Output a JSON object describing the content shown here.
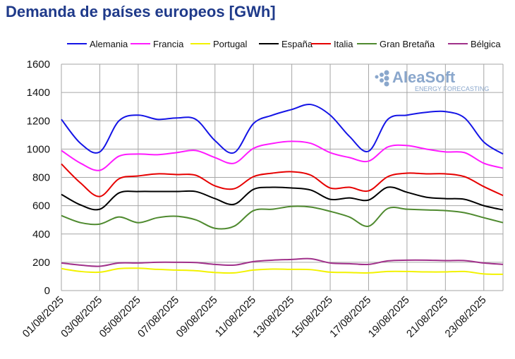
{
  "chart_data": {
    "type": "line",
    "title": "Demanda de países europeos [GWh]",
    "watermark": {
      "name": "AleaSoft",
      "tagline": "ENERGY FORECASTING",
      "color": "#8aa7cc"
    },
    "xlabel": "",
    "ylabel": "",
    "ylim": [
      0,
      1600
    ],
    "yticks": [
      0,
      200,
      400,
      600,
      800,
      1000,
      1200,
      1400,
      1600
    ],
    "grid": true,
    "legend_position": "top",
    "x": [
      "01/08/2025",
      "02/08/2025",
      "03/08/2025",
      "04/08/2025",
      "05/08/2025",
      "06/08/2025",
      "07/08/2025",
      "08/08/2025",
      "09/08/2025",
      "10/08/2025",
      "11/08/2025",
      "12/08/2025",
      "13/08/2025",
      "14/08/2025",
      "15/08/2025",
      "16/08/2025",
      "17/08/2025",
      "18/08/2025",
      "19/08/2025",
      "20/08/2025",
      "21/08/2025",
      "22/08/2025",
      "23/08/2025",
      "24/08/2025"
    ],
    "xtick_labels": [
      "01/08/2025",
      "03/08/2025",
      "05/08/2025",
      "07/08/2025",
      "09/08/2025",
      "11/08/2025",
      "13/08/2025",
      "15/08/2025",
      "17/08/2025",
      "19/08/2025",
      "21/08/2025",
      "23/08/2025"
    ],
    "series": [
      {
        "name": "Alemania",
        "color": "#1414e6",
        "values": [
          1210,
          1040,
          980,
          1200,
          1240,
          1210,
          1220,
          1210,
          1060,
          975,
          1180,
          1240,
          1280,
          1315,
          1240,
          1090,
          985,
          1210,
          1240,
          1260,
          1265,
          1220,
          1050,
          965
        ]
      },
      {
        "name": "Francia",
        "color": "#ff1aff",
        "values": [
          990,
          900,
          850,
          950,
          965,
          960,
          975,
          990,
          940,
          900,
          1005,
          1040,
          1055,
          1040,
          975,
          940,
          915,
          1015,
          1025,
          1000,
          980,
          975,
          900,
          865
        ]
      },
      {
        "name": "Portugal",
        "color": "#f2f200",
        "values": [
          155,
          135,
          130,
          155,
          158,
          150,
          145,
          140,
          128,
          125,
          145,
          152,
          150,
          148,
          130,
          128,
          125,
          135,
          135,
          132,
          132,
          135,
          118,
          115
        ]
      },
      {
        "name": "España",
        "color": "#000000",
        "values": [
          680,
          605,
          575,
          690,
          700,
          700,
          700,
          700,
          650,
          610,
          715,
          730,
          725,
          710,
          645,
          655,
          640,
          730,
          695,
          660,
          650,
          645,
          600,
          570
        ]
      },
      {
        "name": "Italia",
        "color": "#e60000",
        "values": [
          895,
          760,
          665,
          790,
          810,
          825,
          820,
          815,
          740,
          720,
          805,
          830,
          840,
          815,
          725,
          730,
          705,
          805,
          830,
          825,
          825,
          805,
          735,
          672
        ]
      },
      {
        "name": "Gran Bretaña",
        "color": "#4f8a2f",
        "values": [
          530,
          480,
          470,
          520,
          480,
          515,
          525,
          500,
          440,
          455,
          565,
          575,
          595,
          590,
          560,
          520,
          455,
          580,
          575,
          570,
          565,
          550,
          515,
          480
        ]
      },
      {
        "name": "Bélgica",
        "color": "#a0308a",
        "values": [
          195,
          180,
          172,
          195,
          195,
          200,
          200,
          198,
          185,
          180,
          205,
          215,
          220,
          225,
          195,
          190,
          185,
          210,
          215,
          215,
          212,
          212,
          195,
          185
        ]
      }
    ]
  }
}
